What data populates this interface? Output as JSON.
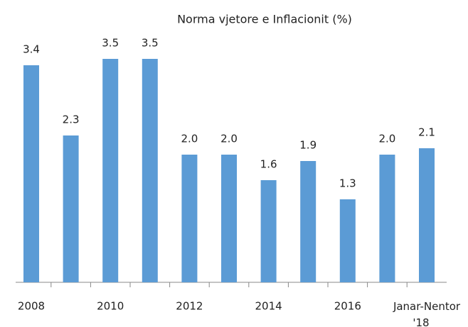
{
  "chart_data": {
    "type": "bar",
    "title": "Norma vjetore e Inflacionit (%)",
    "categories": [
      "2008",
      null,
      "2010",
      null,
      "2012",
      null,
      "2014",
      null,
      "2016",
      null,
      "Janar-Nentor '18"
    ],
    "values": [
      3.4,
      2.3,
      3.5,
      3.5,
      2.0,
      2.0,
      1.6,
      1.9,
      1.3,
      2.0,
      2.1
    ],
    "value_labels": [
      "3.4",
      "2.3",
      "3.5",
      "3.5",
      "2.0",
      "2.0",
      "1.6",
      "1.9",
      "1.3",
      "2.0",
      "2.1"
    ],
    "color": "#5b9bd5"
  }
}
